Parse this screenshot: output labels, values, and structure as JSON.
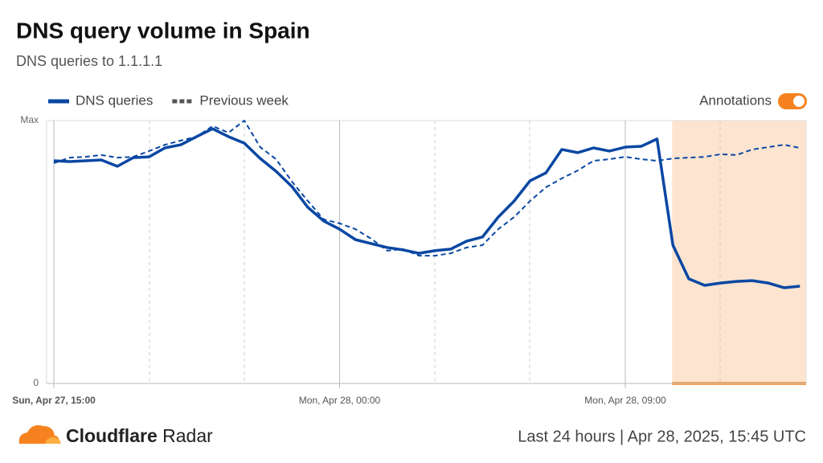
{
  "chart_data": {
    "type": "line",
    "title": "DNS query volume in Spain",
    "subtitle": "DNS queries to 1.1.1.1",
    "x": [
      "Sun, Apr 27, 15:00",
      "Sun, Apr 27, 15:30",
      "Sun, Apr 27, 16:00",
      "Sun, Apr 27, 16:30",
      "Sun, Apr 27, 17:00",
      "Sun, Apr 27, 17:30",
      "Sun, Apr 27, 18:00",
      "Sun, Apr 27, 18:30",
      "Sun, Apr 27, 19:00",
      "Sun, Apr 27, 19:30",
      "Sun, Apr 27, 20:00",
      "Sun, Apr 27, 20:30",
      "Sun, Apr 27, 21:00",
      "Sun, Apr 27, 21:30",
      "Sun, Apr 27, 22:00",
      "Sun, Apr 27, 22:30",
      "Sun, Apr 27, 23:00",
      "Sun, Apr 27, 23:30",
      "Mon, Apr 28, 00:00",
      "Mon, Apr 28, 00:30",
      "Mon, Apr 28, 01:00",
      "Mon, Apr 28, 01:30",
      "Mon, Apr 28, 02:00",
      "Mon, Apr 28, 02:30",
      "Mon, Apr 28, 03:00",
      "Mon, Apr 28, 03:30",
      "Mon, Apr 28, 04:00",
      "Mon, Apr 28, 04:30",
      "Mon, Apr 28, 05:00",
      "Mon, Apr 28, 05:30",
      "Mon, Apr 28, 06:00",
      "Mon, Apr 28, 06:30",
      "Mon, Apr 28, 07:00",
      "Mon, Apr 28, 07:30",
      "Mon, Apr 28, 08:00",
      "Mon, Apr 28, 08:30",
      "Mon, Apr 28, 09:00",
      "Mon, Apr 28, 09:30",
      "Mon, Apr 28, 10:00",
      "Mon, Apr 28, 10:30",
      "Mon, Apr 28, 11:00",
      "Mon, Apr 28, 11:30",
      "Mon, Apr 28, 12:00",
      "Mon, Apr 28, 12:30",
      "Mon, Apr 28, 13:00",
      "Mon, Apr 28, 13:30",
      "Mon, Apr 28, 14:00",
      "Mon, Apr 28, 14:30"
    ],
    "series": [
      {
        "name": "DNS queries",
        "color": "#0a47a3",
        "dashed": false,
        "values": [
          84.7,
          84.4,
          84.7,
          85,
          82.6,
          85.9,
          86.2,
          89.6,
          90.8,
          93.9,
          96.9,
          93.9,
          91.4,
          85.6,
          80.7,
          74.9,
          67,
          61.8,
          58.7,
          54.7,
          53.2,
          51.7,
          50.8,
          49.5,
          50.5,
          51.1,
          54.1,
          55.7,
          63.3,
          69.4,
          77.1,
          80.1,
          89,
          87.8,
          89.6,
          88.4,
          89.9,
          90.2,
          93,
          52.6,
          39.8,
          37.3,
          38.2,
          38.8,
          39.1,
          38.2,
          36.4,
          37
        ]
      },
      {
        "name": "Previous week",
        "color": "#0a47a3",
        "dashed": true,
        "values": [
          83.8,
          85.9,
          86.2,
          86.9,
          85.9,
          86.2,
          88.4,
          90.8,
          92.4,
          93.9,
          97.9,
          95.4,
          100,
          89.9,
          85.3,
          76.8,
          69.4,
          62.4,
          60.9,
          58.7,
          55,
          50.5,
          51.1,
          48.6,
          48.6,
          49.5,
          51.7,
          52.6,
          58.7,
          63.3,
          69.4,
          74.6,
          78,
          81,
          84.7,
          85.3,
          86.2,
          85.3,
          84.7,
          85.6,
          85.9,
          86.2,
          87.2,
          86.9,
          89,
          89.9,
          90.8,
          89.6
        ]
      }
    ],
    "ylim": [
      0,
      100
    ],
    "yticks": [
      {
        "value": 100,
        "label": "Max"
      },
      0
    ],
    "xticks": [
      "Sun, Apr 27, 15:00",
      "Mon, Apr 28, 00:00",
      "Mon, Apr 28, 09:00"
    ],
    "annotation_from": "Mon, Apr 28, 10:30",
    "annotations_label": "Annotations",
    "annotations_on": true,
    "footer": {
      "brand_bold": "Cloudflare",
      "brand": "Radar",
      "timestamp": "Last 24 hours | Apr 28, 2025, 15:45 UTC"
    }
  }
}
